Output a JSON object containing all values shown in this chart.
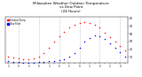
{
  "title": "Milwaukee Weather Outdoor Temperature\nvs Dew Point\n(24 Hours)",
  "title_fontsize": 3.0,
  "background_color": "#ffffff",
  "grid_color": "#aaaaaa",
  "ylim": [
    22,
    82
  ],
  "yticks": [
    30,
    40,
    50,
    60,
    70,
    80
  ],
  "ytick_labels": [
    "30",
    "40",
    "50",
    "60",
    "70",
    "80"
  ],
  "temp_color": "#ff0000",
  "dew_color": "#0000ff",
  "marker_size": 1.2,
  "temp_values": [
    30,
    29,
    28,
    27,
    27,
    28,
    30,
    35,
    42,
    50,
    57,
    63,
    68,
    72,
    74,
    75,
    74,
    72,
    68,
    62,
    56,
    50,
    44,
    38
  ],
  "dew_values": [
    25,
    24,
    23,
    22,
    22,
    22,
    23,
    24,
    25,
    25,
    26,
    27,
    30,
    35,
    42,
    50,
    55,
    58,
    57,
    53,
    48,
    42,
    36,
    30
  ],
  "n_points": 24,
  "vgrid_positions": [
    2,
    6,
    10,
    14,
    18,
    22
  ],
  "x_tick_labels": [
    "1",
    "",
    "5",
    "",
    "1",
    "",
    "5",
    "",
    "1",
    "",
    "5",
    "",
    "1",
    "",
    "5",
    "",
    "1",
    "",
    "5",
    "",
    "1",
    "",
    "5",
    ""
  ],
  "legend_entries": [
    "Outdoor Temp",
    "Dew Point"
  ],
  "legend_colors": [
    "#ff0000",
    "#0000ff"
  ]
}
